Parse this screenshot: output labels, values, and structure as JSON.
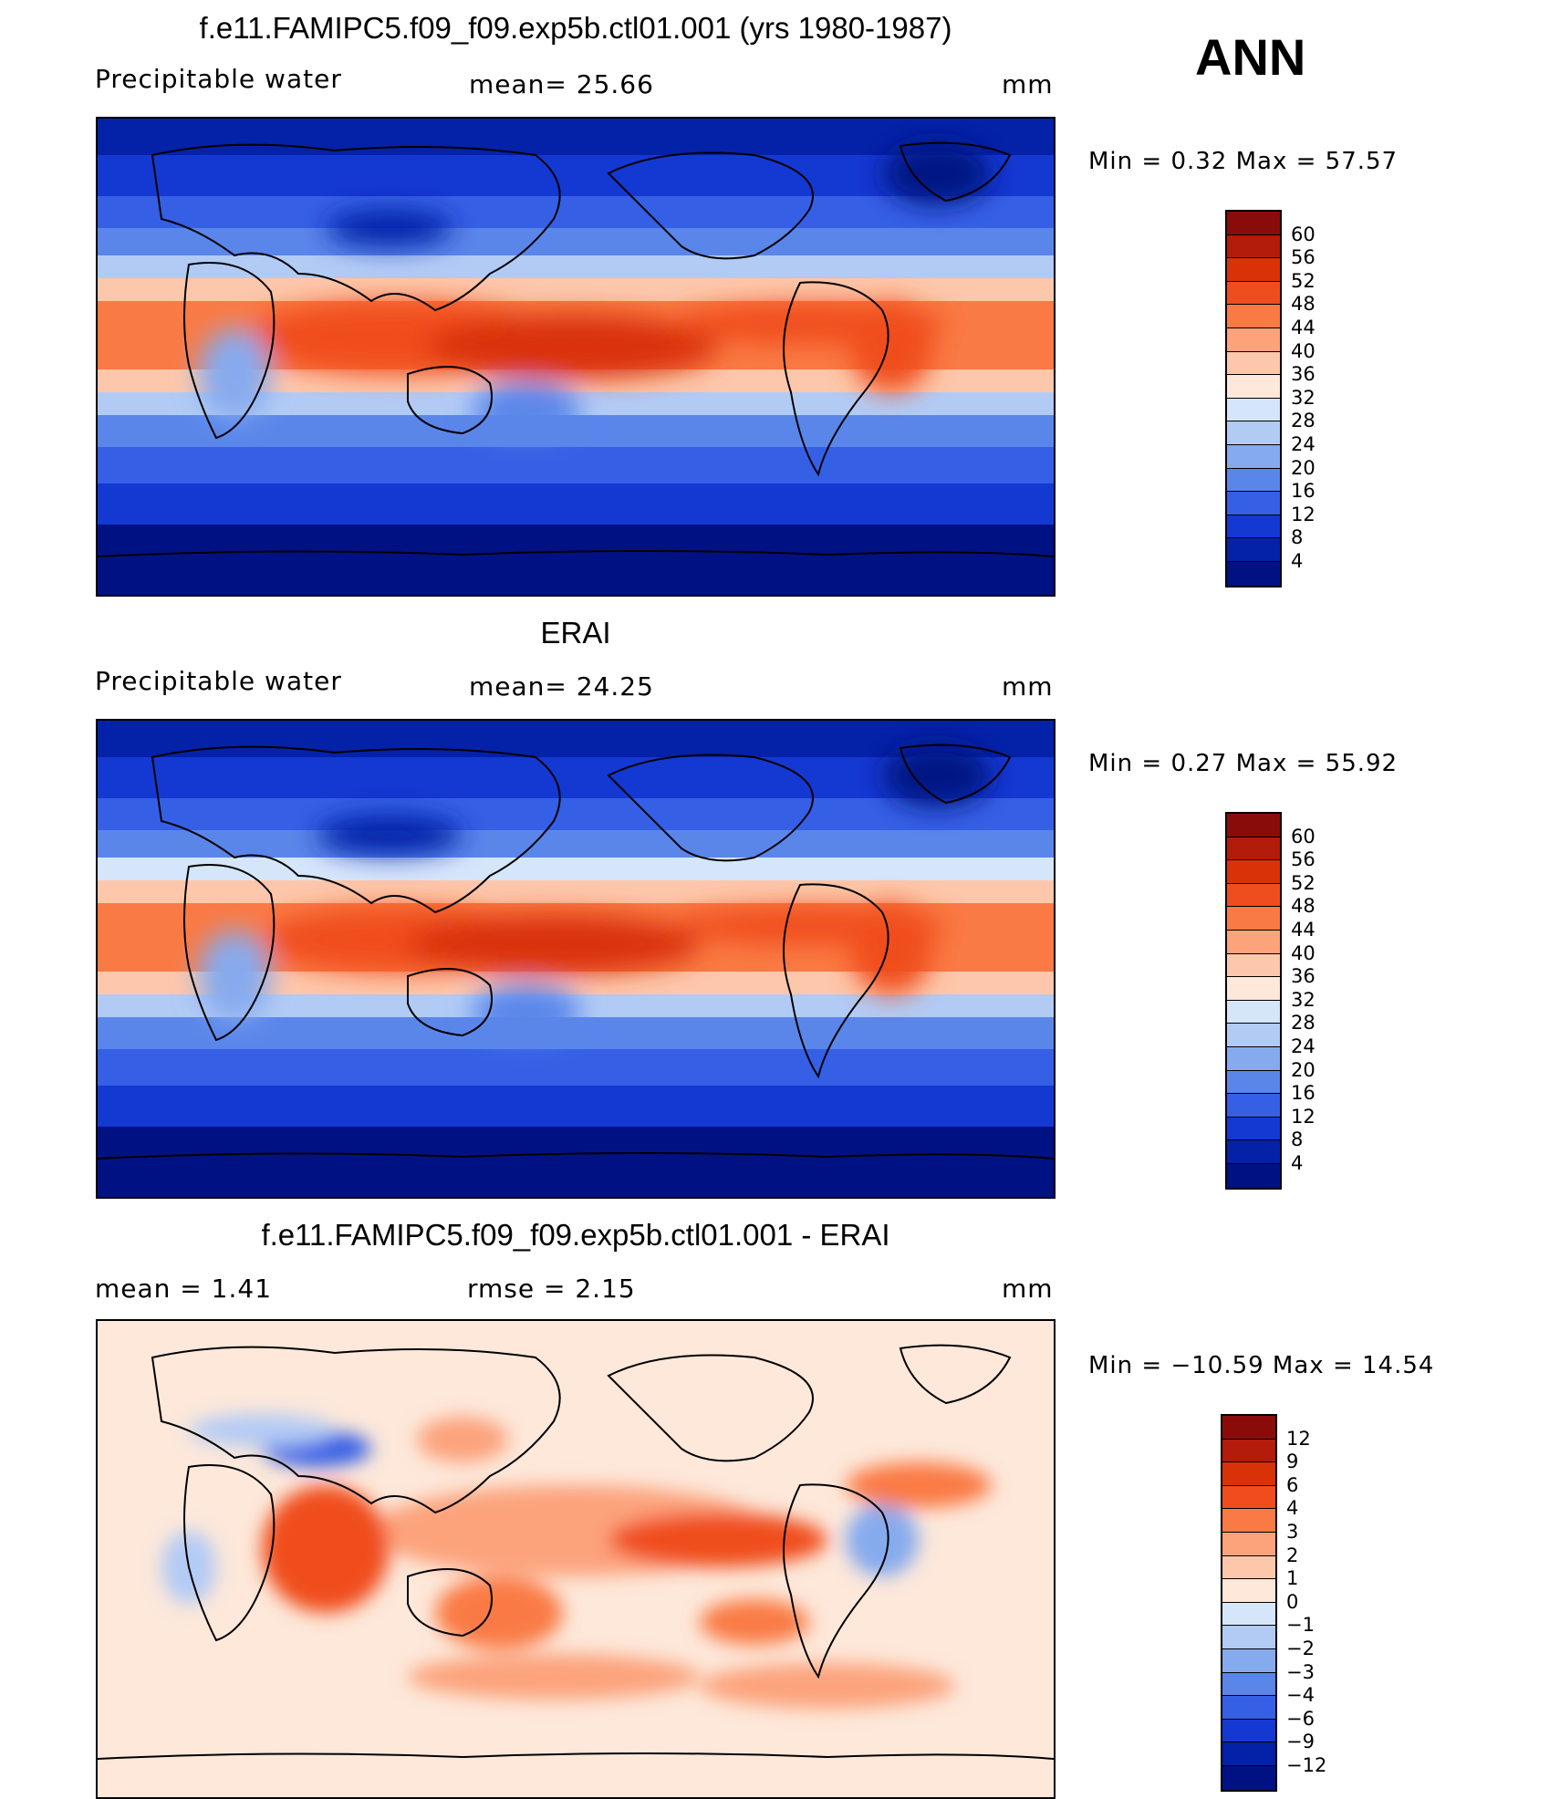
{
  "season": "ANN",
  "panels": [
    {
      "id": "model",
      "title": "f.e11.FAMIPC5.f09_f09.exp5b.ctl01.001 (yrs 1980-1987)",
      "left_label": "Precipitable  water",
      "center_label": "mean=   25.66",
      "units": "mm",
      "minmax": "Min  =      0.32  Max  =     57.57",
      "levels": [
        "60",
        "56",
        "52",
        "48",
        "44",
        "40",
        "36",
        "32",
        "28",
        "24",
        "20",
        "16",
        "12",
        "8",
        "4"
      ],
      "colors": [
        "#8a0c0a",
        "#b31b0a",
        "#d93209",
        "#f04d1e",
        "#fa7a45",
        "#fca37b",
        "#fdc7ab",
        "#fde8da",
        "#d5e6fb",
        "#b2cbf5",
        "#86aaee",
        "#5a86ea",
        "#3560e5",
        "#1438d2",
        "#0322a8",
        "#001283"
      ]
    },
    {
      "id": "obs",
      "title": "ERAI",
      "left_label": "Precipitable  water",
      "center_label": "mean=   24.25",
      "units": "mm",
      "minmax": "Min  =      0.27  Max  =     55.92",
      "levels": [
        "60",
        "56",
        "52",
        "48",
        "44",
        "40",
        "36",
        "32",
        "28",
        "24",
        "20",
        "16",
        "12",
        "8",
        "4"
      ],
      "colors": [
        "#8a0c0a",
        "#b31b0a",
        "#d93209",
        "#f04d1e",
        "#fa7a45",
        "#fca37b",
        "#fdc7ab",
        "#fde8da",
        "#d5e6fb",
        "#b2cbf5",
        "#86aaee",
        "#5a86ea",
        "#3560e5",
        "#1438d2",
        "#0322a8",
        "#001283"
      ]
    },
    {
      "id": "diff",
      "title": "f.e11.FAMIPC5.f09_f09.exp5b.ctl01.001 - ERAI",
      "left_label": "mean  =      1.41",
      "center_label": "rmse  =      2.15",
      "units": "mm",
      "minmax": "Min  = −10.59  Max  =     14.54",
      "levels": [
        "12",
        "9",
        "6",
        "4",
        "3",
        "2",
        "1",
        "0",
        "−1",
        "−2",
        "−3",
        "−4",
        "−6",
        "−9",
        "−12"
      ],
      "colors": [
        "#8a0c0a",
        "#b31b0a",
        "#d93209",
        "#f04d1e",
        "#fa7a45",
        "#fca37b",
        "#fdc7ab",
        "#fde8da",
        "#d5e6fb",
        "#b2cbf5",
        "#86aaee",
        "#5a86ea",
        "#3560e5",
        "#1438d2",
        "#0322a8",
        "#001283"
      ]
    }
  ]
}
